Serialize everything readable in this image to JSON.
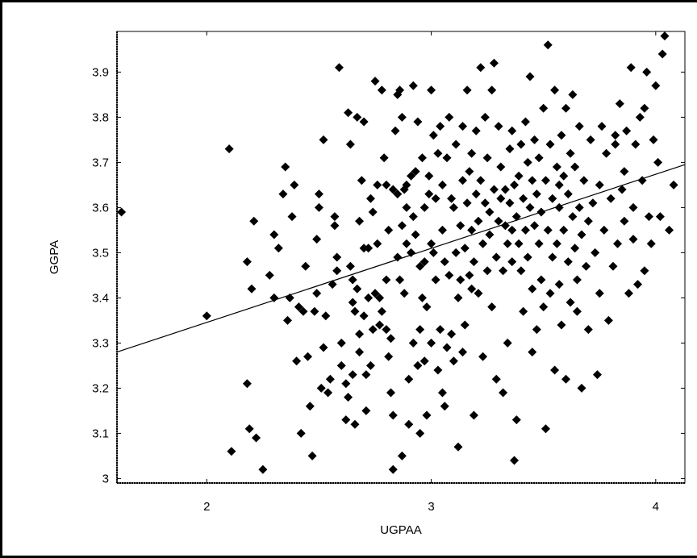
{
  "chart_data": {
    "type": "scatter",
    "title": "",
    "xlabel": "UGPAA",
    "ylabel": "GGPA",
    "xlim": [
      1.6,
      4.13
    ],
    "ylim": [
      2.99,
      3.99
    ],
    "xticks": [
      2,
      3,
      4
    ],
    "xtick_labels": [
      "2",
      "3",
      "4"
    ],
    "yticks": [
      3,
      3.1,
      3.2,
      3.3,
      3.4,
      3.5,
      3.6,
      3.7,
      3.8,
      3.9
    ],
    "ytick_labels": [
      "3",
      "3.1",
      "3.2",
      "3.3",
      "3.4",
      "3.5",
      "3.6",
      "3.7",
      "3.8",
      "3.9"
    ],
    "grid": false,
    "marker": "diamond",
    "marker_color": "#000000",
    "fit_line": {
      "x": [
        1.6,
        4.13
      ],
      "y": [
        3.28,
        3.695
      ]
    },
    "points": [
      [
        1.62,
        3.59
      ],
      [
        2.0,
        3.36
      ],
      [
        2.1,
        3.73
      ],
      [
        2.11,
        3.06
      ],
      [
        2.18,
        3.21
      ],
      [
        2.18,
        3.48
      ],
      [
        2.19,
        3.11
      ],
      [
        2.2,
        3.42
      ],
      [
        2.21,
        3.57
      ],
      [
        2.22,
        3.09
      ],
      [
        2.25,
        3.02
      ],
      [
        2.28,
        3.45
      ],
      [
        2.3,
        3.54
      ],
      [
        2.3,
        3.4
      ],
      [
        2.32,
        3.51
      ],
      [
        2.34,
        3.63
      ],
      [
        2.35,
        3.69
      ],
      [
        2.36,
        3.35
      ],
      [
        2.37,
        3.4
      ],
      [
        2.38,
        3.58
      ],
      [
        2.39,
        3.65
      ],
      [
        2.4,
        3.26
      ],
      [
        2.41,
        3.38
      ],
      [
        2.42,
        3.1
      ],
      [
        2.43,
        3.37
      ],
      [
        2.45,
        3.27
      ],
      [
        2.46,
        3.16
      ],
      [
        2.47,
        3.05
      ],
      [
        2.48,
        3.37
      ],
      [
        2.49,
        3.41
      ],
      [
        2.5,
        3.63
      ],
      [
        2.5,
        3.6
      ],
      [
        2.51,
        3.2
      ],
      [
        2.52,
        3.75
      ],
      [
        2.52,
        3.29
      ],
      [
        2.53,
        3.36
      ],
      [
        2.54,
        3.19
      ],
      [
        2.55,
        3.22
      ],
      [
        2.56,
        3.43
      ],
      [
        2.57,
        3.58
      ],
      [
        2.57,
        3.56
      ],
      [
        2.58,
        3.49
      ],
      [
        2.58,
        3.46
      ],
      [
        2.59,
        3.91
      ],
      [
        2.6,
        3.3
      ],
      [
        2.6,
        3.25
      ],
      [
        2.62,
        3.13
      ],
      [
        2.62,
        3.21
      ],
      [
        2.63,
        3.18
      ],
      [
        2.63,
        3.81
      ],
      [
        2.64,
        3.74
      ],
      [
        2.64,
        3.47
      ],
      [
        2.65,
        3.39
      ],
      [
        2.65,
        3.23
      ],
      [
        2.66,
        3.37
      ],
      [
        2.66,
        3.12
      ],
      [
        2.67,
        3.8
      ],
      [
        2.67,
        3.42
      ],
      [
        2.68,
        3.32
      ],
      [
        2.68,
        3.57
      ],
      [
        2.68,
        3.28
      ],
      [
        2.69,
        3.66
      ],
      [
        2.7,
        3.51
      ],
      [
        2.7,
        3.36
      ],
      [
        2.7,
        3.79
      ],
      [
        2.71,
        3.23
      ],
      [
        2.72,
        3.51
      ],
      [
        2.72,
        3.4
      ],
      [
        2.73,
        3.25
      ],
      [
        2.74,
        3.59
      ],
      [
        2.74,
        3.33
      ],
      [
        2.75,
        3.88
      ],
      [
        2.75,
        3.41
      ],
      [
        2.76,
        3.52
      ],
      [
        2.76,
        3.65
      ],
      [
        2.77,
        3.4
      ],
      [
        2.77,
        3.34
      ],
      [
        2.78,
        3.37
      ],
      [
        2.78,
        3.86
      ],
      [
        2.79,
        3.71
      ],
      [
        2.8,
        3.44
      ],
      [
        2.8,
        3.33
      ],
      [
        2.8,
        3.65
      ],
      [
        2.81,
        3.55
      ],
      [
        2.81,
        3.27
      ],
      [
        2.82,
        3.19
      ],
      [
        2.82,
        3.31
      ],
      [
        2.83,
        3.64
      ],
      [
        2.83,
        3.14
      ],
      [
        2.84,
        3.77
      ],
      [
        2.85,
        3.49
      ],
      [
        2.85,
        3.85
      ],
      [
        2.85,
        3.63
      ],
      [
        2.86,
        3.86
      ],
      [
        2.87,
        3.56
      ],
      [
        2.87,
        3.8
      ],
      [
        2.87,
        3.05
      ],
      [
        2.88,
        3.64
      ],
      [
        2.88,
        3.41
      ],
      [
        2.89,
        3.65
      ],
      [
        2.89,
        3.6
      ],
      [
        2.89,
        3.52
      ],
      [
        2.9,
        3.12
      ],
      [
        2.9,
        3.22
      ],
      [
        2.91,
        3.5
      ],
      [
        2.91,
        3.67
      ],
      [
        2.92,
        3.58
      ],
      [
        2.92,
        3.3
      ],
      [
        2.92,
        3.87
      ],
      [
        2.93,
        3.68
      ],
      [
        2.93,
        3.54
      ],
      [
        2.94,
        3.79
      ],
      [
        2.94,
        3.25
      ],
      [
        2.95,
        3.1
      ],
      [
        2.95,
        3.47
      ],
      [
        2.95,
        3.33
      ],
      [
        2.96,
        3.71
      ],
      [
        2.97,
        3.6
      ],
      [
        2.97,
        3.48
      ],
      [
        2.97,
        3.26
      ],
      [
        2.98,
        3.14
      ],
      [
        2.98,
        3.38
      ],
      [
        2.99,
        3.63
      ],
      [
        2.99,
        3.67
      ],
      [
        3.0,
        3.52
      ],
      [
        3.0,
        3.86
      ],
      [
        3.0,
        3.3
      ],
      [
        3.01,
        3.76
      ],
      [
        3.01,
        3.5
      ],
      [
        3.02,
        3.62
      ],
      [
        3.02,
        3.44
      ],
      [
        3.03,
        3.72
      ],
      [
        3.03,
        3.24
      ],
      [
        3.04,
        3.33
      ],
      [
        3.04,
        3.78
      ],
      [
        3.05,
        3.65
      ],
      [
        3.05,
        3.55
      ],
      [
        3.06,
        3.16
      ],
      [
        3.06,
        3.48
      ],
      [
        3.07,
        3.29
      ],
      [
        3.07,
        3.71
      ],
      [
        3.08,
        3.8
      ],
      [
        3.08,
        3.45
      ],
      [
        3.09,
        3.62
      ],
      [
        3.09,
        3.32
      ],
      [
        3.1,
        3.26
      ],
      [
        3.1,
        3.6
      ],
      [
        3.11,
        3.5
      ],
      [
        3.11,
        3.74
      ],
      [
        3.12,
        3.4
      ],
      [
        3.12,
        3.07
      ],
      [
        3.13,
        3.56
      ],
      [
        3.13,
        3.44
      ],
      [
        3.14,
        3.78
      ],
      [
        3.14,
        3.66
      ],
      [
        3.15,
        3.51
      ],
      [
        3.15,
        3.34
      ],
      [
        3.16,
        3.61
      ],
      [
        3.16,
        3.86
      ],
      [
        3.17,
        3.45
      ],
      [
        3.17,
        3.68
      ],
      [
        3.18,
        3.55
      ],
      [
        3.18,
        3.72
      ],
      [
        3.19,
        3.14
      ],
      [
        3.19,
        3.48
      ],
      [
        3.2,
        3.77
      ],
      [
        3.2,
        3.63
      ],
      [
        3.21,
        3.57
      ],
      [
        3.21,
        3.41
      ],
      [
        3.22,
        3.91
      ],
      [
        3.22,
        3.66
      ],
      [
        3.23,
        3.52
      ],
      [
        3.23,
        3.27
      ],
      [
        3.24,
        3.61
      ],
      [
        3.24,
        3.8
      ],
      [
        3.25,
        3.71
      ],
      [
        3.25,
        3.46
      ],
      [
        3.26,
        3.59
      ],
      [
        3.26,
        3.54
      ],
      [
        3.27,
        3.86
      ],
      [
        3.27,
        3.38
      ],
      [
        3.28,
        3.64
      ],
      [
        3.28,
        3.92
      ],
      [
        3.29,
        3.49
      ],
      [
        3.29,
        3.22
      ],
      [
        3.3,
        3.57
      ],
      [
        3.3,
        3.78
      ],
      [
        3.31,
        3.69
      ],
      [
        3.31,
        3.62
      ],
      [
        3.32,
        3.46
      ],
      [
        3.32,
        3.19
      ],
      [
        3.33,
        3.56
      ],
      [
        3.33,
        3.64
      ],
      [
        3.34,
        3.52
      ],
      [
        3.34,
        3.3
      ],
      [
        3.35,
        3.73
      ],
      [
        3.35,
        3.61
      ],
      [
        3.36,
        3.48
      ],
      [
        3.36,
        3.77
      ],
      [
        3.37,
        3.65
      ],
      [
        3.37,
        3.04
      ],
      [
        3.38,
        3.58
      ],
      [
        3.38,
        3.13
      ],
      [
        3.39,
        3.67
      ],
      [
        3.39,
        3.52
      ],
      [
        3.4,
        3.46
      ],
      [
        3.4,
        3.74
      ],
      [
        3.41,
        3.62
      ],
      [
        3.41,
        3.37
      ],
      [
        3.42,
        3.55
      ],
      [
        3.42,
        3.79
      ],
      [
        3.43,
        3.7
      ],
      [
        3.43,
        3.49
      ],
      [
        3.44,
        3.6
      ],
      [
        3.44,
        3.89
      ],
      [
        3.45,
        3.66
      ],
      [
        3.45,
        3.42
      ],
      [
        3.46,
        3.56
      ],
      [
        3.46,
        3.75
      ],
      [
        3.47,
        3.63
      ],
      [
        3.47,
        3.33
      ],
      [
        3.48,
        3.52
      ],
      [
        3.48,
        3.71
      ],
      [
        3.49,
        3.44
      ],
      [
        3.49,
        3.59
      ],
      [
        3.5,
        3.82
      ],
      [
        3.5,
        3.38
      ],
      [
        3.51,
        3.66
      ],
      [
        3.51,
        3.11
      ],
      [
        3.52,
        3.96
      ],
      [
        3.52,
        3.55
      ],
      [
        3.53,
        3.74
      ],
      [
        3.53,
        3.41
      ],
      [
        3.54,
        3.62
      ],
      [
        3.54,
        3.49
      ],
      [
        3.55,
        3.86
      ],
      [
        3.55,
        3.24
      ],
      [
        3.56,
        3.69
      ],
      [
        3.56,
        3.52
      ],
      [
        3.57,
        3.43
      ],
      [
        3.57,
        3.6
      ],
      [
        3.58,
        3.76
      ],
      [
        3.58,
        3.34
      ],
      [
        3.59,
        3.67
      ],
      [
        3.59,
        3.55
      ],
      [
        3.6,
        3.82
      ],
      [
        3.6,
        3.22
      ],
      [
        3.61,
        3.48
      ],
      [
        3.61,
        3.63
      ],
      [
        3.62,
        3.72
      ],
      [
        3.62,
        3.39
      ],
      [
        3.63,
        3.58
      ],
      [
        3.63,
        3.85
      ],
      [
        3.64,
        3.51
      ],
      [
        3.64,
        3.69
      ],
      [
        3.65,
        3.44
      ],
      [
        3.65,
        3.37
      ],
      [
        3.66,
        3.6
      ],
      [
        3.66,
        3.78
      ],
      [
        3.67,
        3.54
      ],
      [
        3.67,
        3.2
      ],
      [
        3.68,
        3.66
      ],
      [
        3.69,
        3.47
      ],
      [
        3.7,
        3.57
      ],
      [
        3.7,
        3.33
      ],
      [
        3.71,
        3.75
      ],
      [
        3.72,
        3.61
      ],
      [
        3.73,
        3.5
      ],
      [
        3.74,
        3.23
      ],
      [
        3.75,
        3.65
      ],
      [
        3.75,
        3.41
      ],
      [
        3.76,
        3.78
      ],
      [
        3.77,
        3.55
      ],
      [
        3.78,
        3.72
      ],
      [
        3.79,
        3.35
      ],
      [
        3.8,
        3.62
      ],
      [
        3.81,
        3.47
      ],
      [
        3.82,
        3.74
      ],
      [
        3.83,
        3.52
      ],
      [
        3.84,
        3.83
      ],
      [
        3.85,
        3.64
      ],
      [
        3.86,
        3.57
      ],
      [
        3.87,
        3.77
      ],
      [
        3.88,
        3.41
      ],
      [
        3.89,
        3.91
      ],
      [
        3.9,
        3.53
      ],
      [
        3.91,
        3.74
      ],
      [
        3.92,
        3.43
      ],
      [
        3.93,
        3.8
      ],
      [
        3.94,
        3.66
      ],
      [
        3.95,
        3.46
      ],
      [
        3.96,
        3.9
      ],
      [
        3.97,
        3.58
      ],
      [
        3.98,
        3.52
      ],
      [
        3.99,
        3.75
      ],
      [
        4.0,
        3.87
      ],
      [
        4.01,
        3.7
      ],
      [
        4.02,
        3.58
      ],
      [
        4.03,
        3.94
      ],
      [
        4.04,
        3.98
      ],
      [
        4.06,
        3.55
      ],
      [
        4.08,
        3.65
      ],
      [
        3.9,
        3.6
      ],
      [
        3.86,
        3.68
      ],
      [
        3.95,
        3.82
      ],
      [
        3.82,
        3.76
      ],
      [
        2.65,
        3.44
      ],
      [
        2.71,
        3.15
      ],
      [
        2.83,
        3.02
      ],
      [
        3.45,
        3.28
      ],
      [
        2.96,
        3.4
      ],
      [
        3.05,
        3.19
      ],
      [
        3.18,
        3.42
      ],
      [
        2.73,
        3.62
      ],
      [
        2.86,
        3.44
      ],
      [
        3.14,
        3.28
      ],
      [
        3.36,
        3.55
      ],
      [
        3.57,
        3.65
      ],
      [
        2.49,
        3.53
      ],
      [
        2.44,
        3.47
      ]
    ]
  }
}
